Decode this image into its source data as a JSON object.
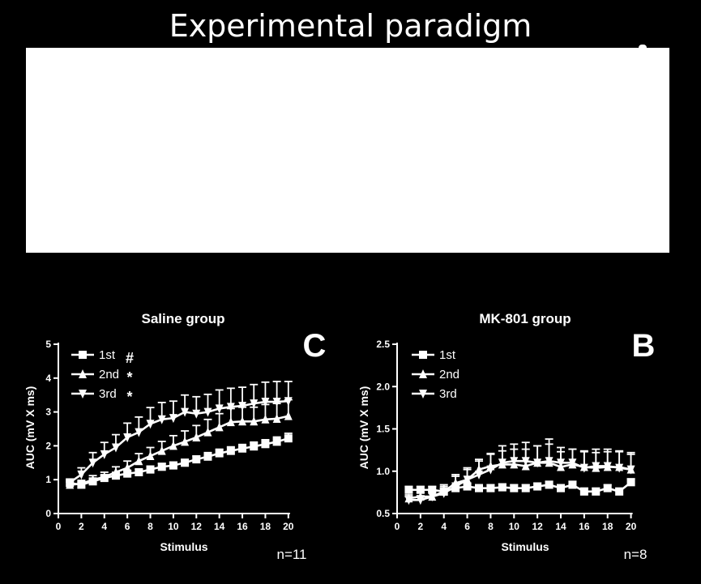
{
  "header": {
    "title": "Experimental paradigm"
  },
  "colors": {
    "background": "#000000",
    "foreground": "#ffffff",
    "paradigm_box": "#ffffff"
  },
  "chart_data": [
    {
      "type": "line",
      "title": "Saline group",
      "panel_letter": "C",
      "note": "n=11",
      "xlabel": "Stimulus",
      "ylabel": "AUC (mV X ms)",
      "xlim": [
        0,
        21
      ],
      "ylim": [
        0,
        5
      ],
      "xticks": [
        0,
        2,
        4,
        6,
        8,
        10,
        12,
        14,
        16,
        18,
        20
      ],
      "yticks": [
        0,
        1,
        2,
        3,
        4,
        5
      ],
      "ytick_labels": [
        "0",
        "1",
        "2",
        "3",
        "4",
        "5"
      ],
      "x": [
        1,
        2,
        3,
        4,
        5,
        6,
        7,
        8,
        9,
        10,
        11,
        12,
        13,
        14,
        15,
        16,
        17,
        18,
        19,
        20
      ],
      "series": [
        {
          "name": "1st",
          "marker": "square",
          "significance": "#",
          "values": [
            0.9,
            0.85,
            0.95,
            1.05,
            1.12,
            1.18,
            1.22,
            1.3,
            1.38,
            1.42,
            1.5,
            1.6,
            1.68,
            1.78,
            1.85,
            1.92,
            1.98,
            2.05,
            2.12,
            2.22
          ],
          "errors": [
            0.08,
            0.08,
            0.08,
            0.08,
            0.08,
            0.08,
            0.08,
            0.1,
            0.1,
            0.1,
            0.1,
            0.1,
            0.12,
            0.12,
            0.12,
            0.12,
            0.13,
            0.13,
            0.14,
            0.15
          ]
        },
        {
          "name": "2nd",
          "marker": "triangle-up",
          "significance": "*",
          "values": [
            0.85,
            0.88,
            1.0,
            1.08,
            1.22,
            1.35,
            1.55,
            1.7,
            1.85,
            2.0,
            2.12,
            2.25,
            2.4,
            2.55,
            2.7,
            2.72,
            2.72,
            2.78,
            2.8,
            2.88
          ],
          "errors": [
            0.08,
            0.1,
            0.12,
            0.14,
            0.16,
            0.2,
            0.22,
            0.25,
            0.28,
            0.3,
            0.32,
            0.35,
            0.38,
            0.4,
            0.4,
            0.42,
            0.42,
            0.44,
            0.45,
            0.48
          ]
        },
        {
          "name": "3rd",
          "marker": "triangle-down",
          "significance": "*",
          "values": [
            0.92,
            1.15,
            1.5,
            1.75,
            1.95,
            2.25,
            2.4,
            2.65,
            2.78,
            2.82,
            3.0,
            2.95,
            3.0,
            3.1,
            3.15,
            3.18,
            3.25,
            3.3,
            3.3,
            3.32
          ],
          "errors": [
            0.1,
            0.2,
            0.3,
            0.35,
            0.38,
            0.42,
            0.45,
            0.48,
            0.5,
            0.5,
            0.5,
            0.5,
            0.52,
            0.55,
            0.55,
            0.55,
            0.56,
            0.58,
            0.6,
            0.58
          ]
        }
      ]
    },
    {
      "type": "line",
      "title": "MK-801 group",
      "panel_letter": "B",
      "note": "n=8",
      "xlabel": "Stimulus",
      "ylabel": "AUC (mV X ms)",
      "xlim": [
        0,
        21
      ],
      "ylim": [
        0.5,
        2.5
      ],
      "xticks": [
        0,
        2,
        4,
        6,
        8,
        10,
        12,
        14,
        16,
        18,
        20
      ],
      "yticks": [
        0.5,
        1.0,
        1.5,
        2.0,
        2.5
      ],
      "ytick_labels": [
        "0.5",
        "1.0",
        "1.5",
        "2.0",
        "2.5"
      ],
      "x": [
        1,
        2,
        3,
        4,
        5,
        6,
        7,
        8,
        9,
        10,
        11,
        12,
        13,
        14,
        15,
        16,
        17,
        18,
        19,
        20
      ],
      "series": [
        {
          "name": "1st",
          "marker": "square",
          "values": [
            0.78,
            0.78,
            0.78,
            0.76,
            0.8,
            0.82,
            0.8,
            0.8,
            0.81,
            0.8,
            0.8,
            0.82,
            0.84,
            0.8,
            0.84,
            0.76,
            0.76,
            0.8,
            0.76,
            0.87
          ],
          "errors": [
            0.04,
            0.04,
            0.04,
            0.04,
            0.04,
            0.04,
            0.04,
            0.04,
            0.04,
            0.04,
            0.04,
            0.04,
            0.04,
            0.04,
            0.04,
            0.04,
            0.04,
            0.04,
            0.04,
            0.04
          ]
        },
        {
          "name": "2nd",
          "marker": "triangle-up",
          "values": [
            0.68,
            0.7,
            0.7,
            0.76,
            0.86,
            0.9,
            1.02,
            1.06,
            1.08,
            1.08,
            1.06,
            1.1,
            1.1,
            1.05,
            1.08,
            1.05,
            1.04,
            1.05,
            1.05,
            1.02
          ],
          "errors": [
            0.04,
            0.05,
            0.06,
            0.08,
            0.1,
            0.12,
            0.12,
            0.15,
            0.16,
            0.18,
            0.2,
            0.2,
            0.22,
            0.18,
            0.18,
            0.18,
            0.18,
            0.18,
            0.18,
            0.18
          ]
        },
        {
          "name": "3rd",
          "marker": "triangle-down",
          "values": [
            0.66,
            0.66,
            0.7,
            0.74,
            0.82,
            0.9,
            0.96,
            1.02,
            1.1,
            1.12,
            1.12,
            1.1,
            1.12,
            1.1,
            1.1,
            1.04,
            1.06,
            1.06,
            1.04,
            1.02
          ],
          "errors": [
            0.04,
            0.05,
            0.06,
            0.08,
            0.12,
            0.14,
            0.16,
            0.18,
            0.2,
            0.2,
            0.22,
            0.2,
            0.26,
            0.18,
            0.16,
            0.2,
            0.2,
            0.2,
            0.2,
            0.2
          ]
        }
      ]
    }
  ]
}
